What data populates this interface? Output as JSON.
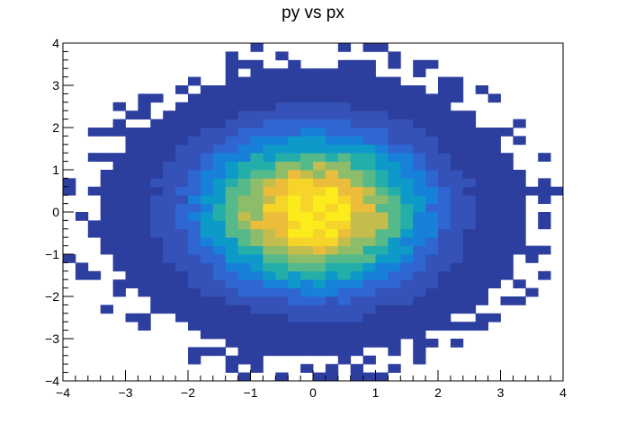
{
  "chart_data": {
    "type": "heatmap",
    "title": "py vs px",
    "xlabel": "",
    "ylabel": "",
    "xlim": [
      -4,
      4
    ],
    "ylim": [
      -4,
      4
    ],
    "x_ticks": [
      "−4",
      "−3",
      "−2",
      "−1",
      "0",
      "1",
      "2",
      "3",
      "4"
    ],
    "y_ticks": [
      "−4",
      "−3",
      "−2",
      "−1",
      "0",
      "1",
      "2",
      "3",
      "4"
    ],
    "bins": 40,
    "grid": false,
    "legend": "none",
    "distribution": "2D Gaussian, mean (0, 0), sigma ≈ 1 in x and y",
    "palette": [
      "#2c3e9e",
      "#3452b8",
      "#2f66d2",
      "#1780d8",
      "#0e9ac9",
      "#23aeaa",
      "#56b98a",
      "#8dbd6a",
      "#c3bd4e",
      "#ecbd3b",
      "#f7d429",
      "#fcec1c"
    ]
  }
}
